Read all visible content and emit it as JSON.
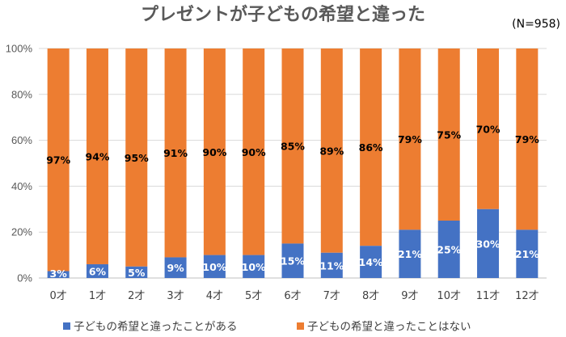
{
  "chart_data": {
    "type": "bar",
    "stacked": true,
    "percent": true,
    "title": "プレゼントが子どもの希望と違った",
    "note": "(N=958)",
    "categories": [
      "0才",
      "1才",
      "2才",
      "3才",
      "4才",
      "5才",
      "6才",
      "7才",
      "8才",
      "9才",
      "10才",
      "11才",
      "12才"
    ],
    "series": [
      {
        "name": "子どもの希望と違ったことがある",
        "color": "#4472C4",
        "values": [
          3,
          6,
          5,
          9,
          10,
          10,
          15,
          11,
          14,
          21,
          25,
          30,
          21
        ]
      },
      {
        "name": "子どもの希望と違ったことはない",
        "color": "#ED7D31",
        "values": [
          97,
          94,
          95,
          91,
          90,
          90,
          85,
          89,
          86,
          79,
          75,
          70,
          79
        ]
      }
    ],
    "ylim": [
      0,
      100
    ],
    "yticks": [
      "0%",
      "20%",
      "40%",
      "60%",
      "80%",
      "100%"
    ],
    "grid": true,
    "legend_position": "bottom"
  }
}
